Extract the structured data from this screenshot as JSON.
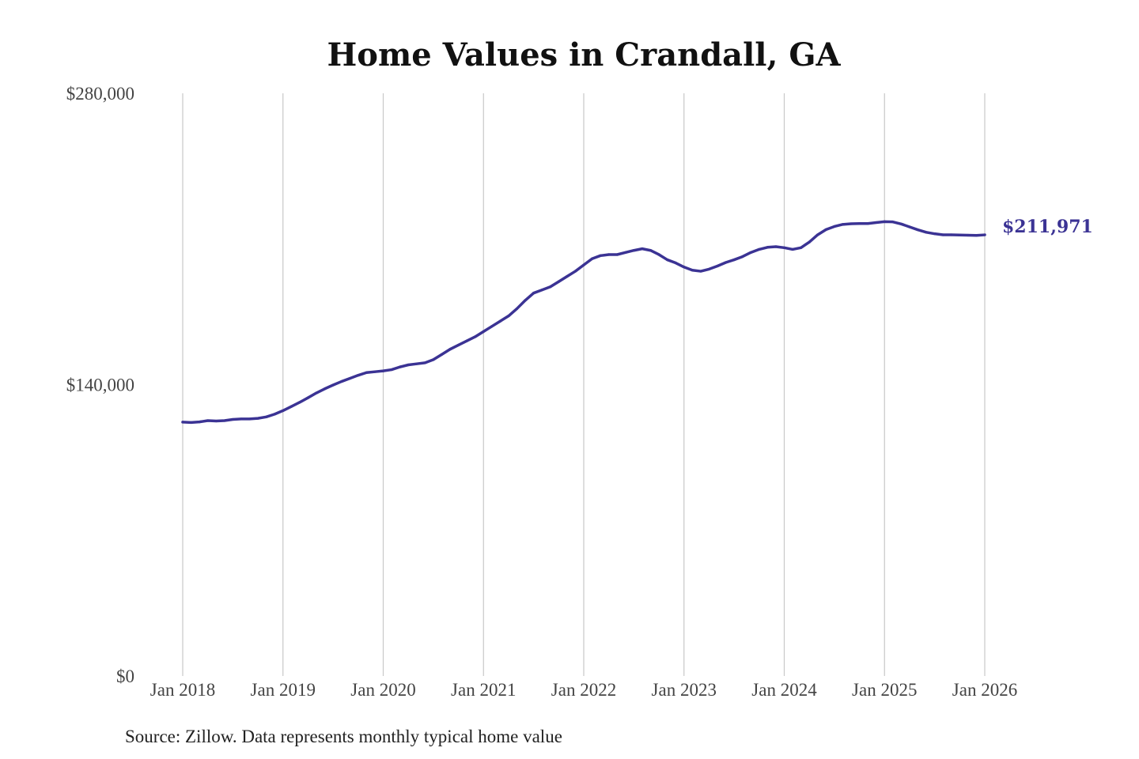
{
  "chart_data": {
    "type": "line",
    "title": "Home Values in Crandall, GA",
    "xlabel": "",
    "ylabel": "",
    "ylim": [
      0,
      280000
    ],
    "yticks": [
      {
        "value": 0,
        "label": "$0"
      },
      {
        "value": 140000,
        "label": "$140,000"
      },
      {
        "value": 280000,
        "label": "$280,000"
      }
    ],
    "xlim": [
      "2018-01",
      "2026-01"
    ],
    "xticks": [
      {
        "date": "2018-01",
        "label": "Jan 2018"
      },
      {
        "date": "2019-01",
        "label": "Jan 2019"
      },
      {
        "date": "2020-01",
        "label": "Jan 2020"
      },
      {
        "date": "2021-01",
        "label": "Jan 2021"
      },
      {
        "date": "2022-01",
        "label": "Jan 2022"
      },
      {
        "date": "2023-01",
        "label": "Jan 2023"
      },
      {
        "date": "2024-01",
        "label": "Jan 2024"
      },
      {
        "date": "2025-01",
        "label": "Jan 2025"
      },
      {
        "date": "2026-01",
        "label": "Jan 2026"
      }
    ],
    "grid": {
      "vertical": true,
      "horizontal": false
    },
    "line_color": "#3b3394",
    "end_label": "$211,971",
    "source": "Source: Zillow. Data represents monthly typical home value",
    "series": [
      {
        "points": [
          [
            "2018-01",
            122000
          ],
          [
            "2018-02",
            121800
          ],
          [
            "2018-03",
            122100
          ],
          [
            "2018-04",
            122700
          ],
          [
            "2018-05",
            122500
          ],
          [
            "2018-06",
            122700
          ],
          [
            "2018-07",
            123300
          ],
          [
            "2018-08",
            123500
          ],
          [
            "2018-09",
            123500
          ],
          [
            "2018-10",
            123800
          ],
          [
            "2018-11",
            124500
          ],
          [
            "2018-12",
            125800
          ],
          [
            "2019-01",
            127500
          ],
          [
            "2019-02",
            129500
          ],
          [
            "2019-03",
            131500
          ],
          [
            "2019-04",
            133700
          ],
          [
            "2019-05",
            136000
          ],
          [
            "2019-06",
            138000
          ],
          [
            "2019-07",
            139800
          ],
          [
            "2019-08",
            141500
          ],
          [
            "2019-09",
            143000
          ],
          [
            "2019-10",
            144500
          ],
          [
            "2019-11",
            145800
          ],
          [
            "2019-12",
            146200
          ],
          [
            "2020-01",
            146600
          ],
          [
            "2020-02",
            147200
          ],
          [
            "2020-03",
            148500
          ],
          [
            "2020-04",
            149500
          ],
          [
            "2020-05",
            150000
          ],
          [
            "2020-06",
            150500
          ],
          [
            "2020-07",
            152000
          ],
          [
            "2020-08",
            154500
          ],
          [
            "2020-09",
            157000
          ],
          [
            "2020-10",
            159000
          ],
          [
            "2020-11",
            161000
          ],
          [
            "2020-12",
            163000
          ],
          [
            "2021-01",
            165500
          ],
          [
            "2021-02",
            168000
          ],
          [
            "2021-03",
            170500
          ],
          [
            "2021-04",
            173000
          ],
          [
            "2021-05",
            176500
          ],
          [
            "2021-06",
            180500
          ],
          [
            "2021-07",
            184000
          ],
          [
            "2021-08",
            185500
          ],
          [
            "2021-09",
            187000
          ],
          [
            "2021-10",
            189500
          ],
          [
            "2021-11",
            192000
          ],
          [
            "2021-12",
            194500
          ],
          [
            "2022-01",
            197500
          ],
          [
            "2022-02",
            200500
          ],
          [
            "2022-03",
            202000
          ],
          [
            "2022-04",
            202500
          ],
          [
            "2022-05",
            202500
          ],
          [
            "2022-06",
            203500
          ],
          [
            "2022-07",
            204500
          ],
          [
            "2022-08",
            205300
          ],
          [
            "2022-09",
            204500
          ],
          [
            "2022-10",
            202500
          ],
          [
            "2022-11",
            200000
          ],
          [
            "2022-12",
            198500
          ],
          [
            "2023-01",
            196500
          ],
          [
            "2023-02",
            195000
          ],
          [
            "2023-03",
            194500
          ],
          [
            "2023-04",
            195500
          ],
          [
            "2023-05",
            197000
          ],
          [
            "2023-06",
            198700
          ],
          [
            "2023-07",
            200000
          ],
          [
            "2023-08",
            201500
          ],
          [
            "2023-09",
            203500
          ],
          [
            "2023-10",
            205000
          ],
          [
            "2023-11",
            206000
          ],
          [
            "2023-12",
            206300
          ],
          [
            "2024-01",
            205800
          ],
          [
            "2024-02",
            205000
          ],
          [
            "2024-03",
            205800
          ],
          [
            "2024-04",
            208500
          ],
          [
            "2024-05",
            212000
          ],
          [
            "2024-06",
            214500
          ],
          [
            "2024-07",
            216000
          ],
          [
            "2024-08",
            217000
          ],
          [
            "2024-09",
            217300
          ],
          [
            "2024-10",
            217400
          ],
          [
            "2024-11",
            217400
          ],
          [
            "2024-12",
            217900
          ],
          [
            "2025-01",
            218300
          ],
          [
            "2025-02",
            218200
          ],
          [
            "2025-03",
            217200
          ],
          [
            "2025-04",
            215800
          ],
          [
            "2025-05",
            214400
          ],
          [
            "2025-06",
            213200
          ],
          [
            "2025-07",
            212500
          ],
          [
            "2025-08",
            212000
          ],
          [
            "2025-09",
            212000
          ],
          [
            "2025-10",
            211900
          ],
          [
            "2025-11",
            211800
          ],
          [
            "2025-12",
            211700
          ],
          [
            "2026-01",
            211971
          ]
        ]
      }
    ]
  }
}
